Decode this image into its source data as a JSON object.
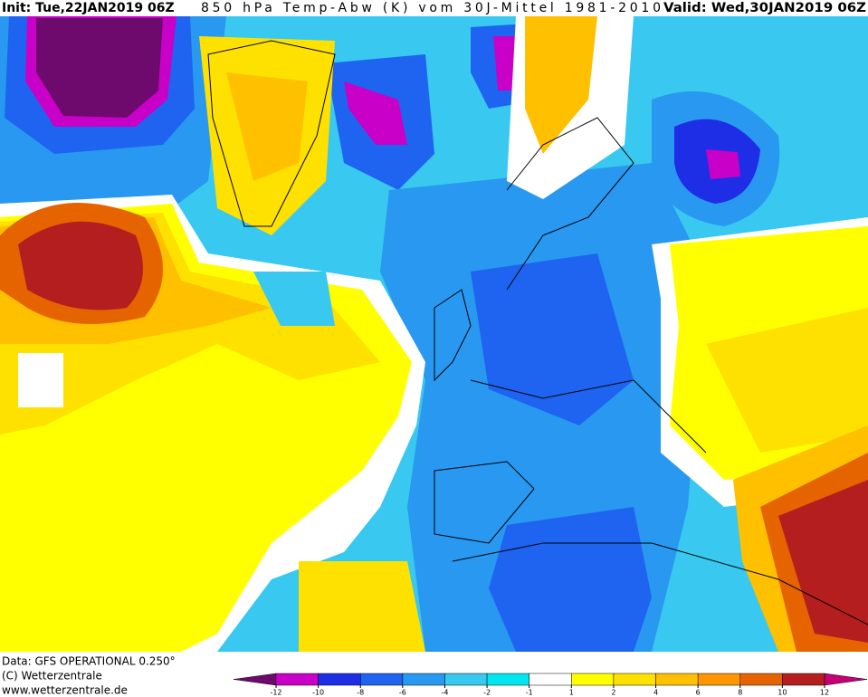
{
  "header": {
    "init": "Init: Tue,22JAN2019 06Z",
    "title": "850 hPa Temp-Abw (K) vom 30J-Mittel 1981-2010",
    "valid": "Valid: Wed,30JAN2019 06Z"
  },
  "footer": {
    "data": "Data: GFS OPERATIONAL 0.250°",
    "copyright": "(C) Wetterzentrale",
    "url": "www.wetterzentrale.de"
  },
  "colorbar": {
    "ticks": [
      -12,
      -10,
      -8,
      -6,
      -4,
      -2,
      -1,
      1,
      2,
      4,
      6,
      8,
      10,
      12
    ],
    "colors": [
      "#6e0a6e",
      "#c800c8",
      "#1e2ee6",
      "#1e64f0",
      "#2898f0",
      "#38c8f0",
      "#00e6f0",
      "#ffffff",
      "#ffff00",
      "#ffe100",
      "#ffc000",
      "#ff9600",
      "#e66400",
      "#b41e1e",
      "#c80078"
    ]
  }
}
